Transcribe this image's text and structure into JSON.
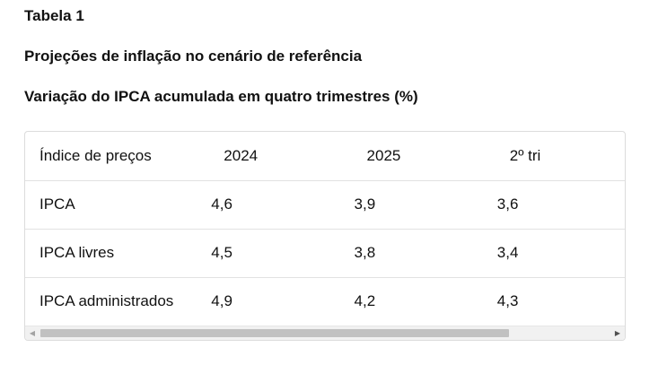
{
  "label": "Tabela 1",
  "title": "Projeções de inflação no cenário de referência",
  "subtitle": "Variação do IPCA acumulada em quatro trimestres (%)",
  "table": {
    "headers": [
      "Índice de preços",
      "2024",
      "2025",
      "2º tri"
    ],
    "rows": [
      [
        "IPCA",
        "4,6",
        "3,9",
        "3,6"
      ],
      [
        "IPCA livres",
        "4,5",
        "3,8",
        "3,4"
      ],
      [
        "IPCA administrados",
        "4,9",
        "4,2",
        "4,3"
      ]
    ]
  },
  "scrollbar": {
    "left_arrow_icon": "chevron-left-icon",
    "right_arrow_icon": "chevron-right-icon",
    "horizontal_scroll_position": 0.0
  }
}
